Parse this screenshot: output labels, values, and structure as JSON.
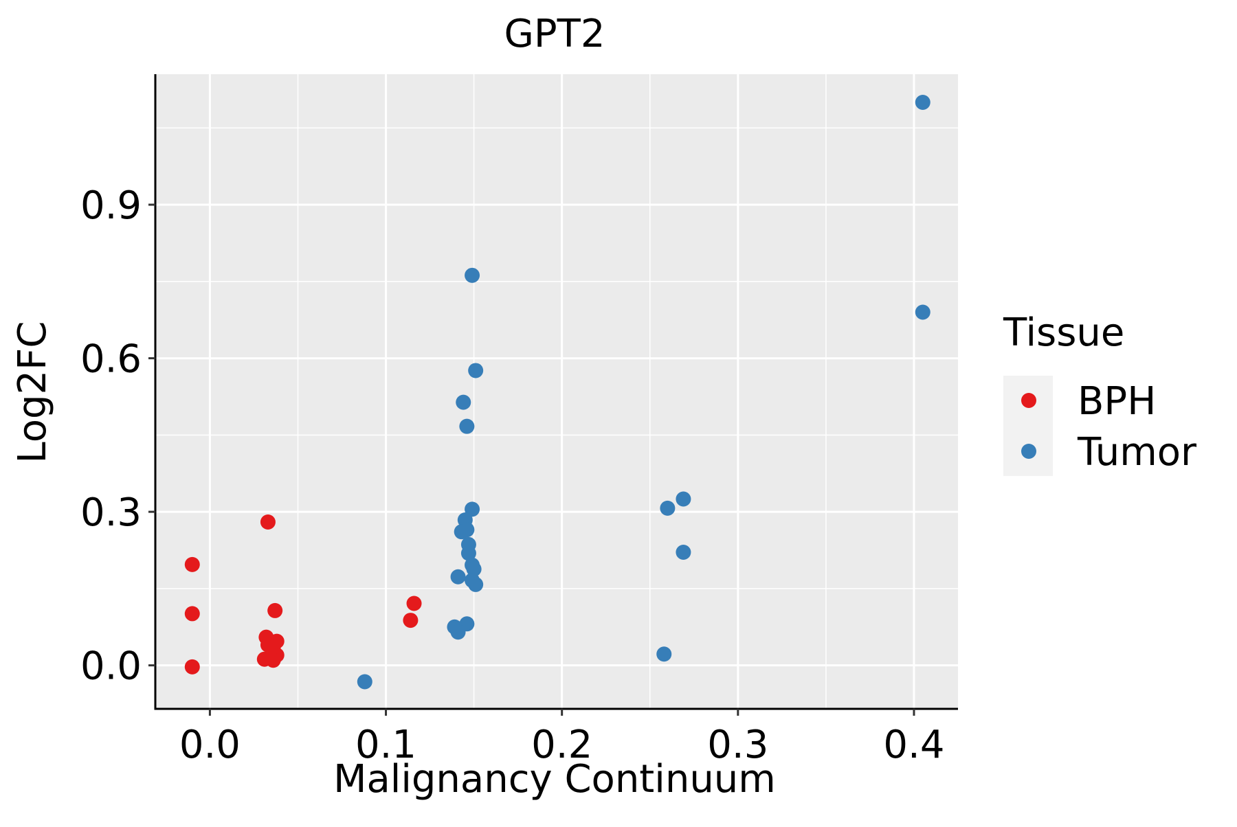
{
  "chart_data": {
    "type": "scatter",
    "title": "GPT2",
    "xlabel": "Malignancy Continuum",
    "ylabel": "Log2FC",
    "xlim": [
      -0.031,
      0.425
    ],
    "ylim": [
      -0.085,
      1.155
    ],
    "xticks": [
      0.0,
      0.1,
      0.2,
      0.3,
      0.4
    ],
    "xtick_labels": [
      "0.0",
      "0.1",
      "0.2",
      "0.3",
      "0.4"
    ],
    "yticks": [
      0.0,
      0.3,
      0.6,
      0.9
    ],
    "ytick_labels": [
      "0.0",
      "0.3",
      "0.6",
      "0.9"
    ],
    "x_minor_grid": [
      0.05,
      0.15,
      0.25,
      0.35
    ],
    "y_minor_grid": [
      0.15,
      0.45,
      0.75,
      1.05
    ],
    "grid": true,
    "background": "#EBEBEB",
    "legend": {
      "title": "Tissue",
      "placement": "right",
      "entries": [
        "BPH",
        "Tumor"
      ]
    },
    "series": [
      {
        "name": "BPH",
        "color": "#E41A1C",
        "points": [
          {
            "x": -0.01,
            "y": 0.197
          },
          {
            "x": -0.01,
            "y": 0.101
          },
          {
            "x": -0.01,
            "y": -0.003
          },
          {
            "x": 0.033,
            "y": 0.28
          },
          {
            "x": 0.037,
            "y": 0.107
          },
          {
            "x": 0.032,
            "y": 0.055
          },
          {
            "x": 0.038,
            "y": 0.047
          },
          {
            "x": 0.033,
            "y": 0.04
          },
          {
            "x": 0.036,
            "y": 0.035
          },
          {
            "x": 0.038,
            "y": 0.02
          },
          {
            "x": 0.031,
            "y": 0.012
          },
          {
            "x": 0.036,
            "y": 0.01
          },
          {
            "x": 0.116,
            "y": 0.121
          },
          {
            "x": 0.114,
            "y": 0.088
          }
        ]
      },
      {
        "name": "Tumor",
        "color": "#377EB8",
        "points": [
          {
            "x": 0.405,
            "y": 1.1
          },
          {
            "x": 0.405,
            "y": 0.69
          },
          {
            "x": 0.149,
            "y": 0.762
          },
          {
            "x": 0.151,
            "y": 0.576
          },
          {
            "x": 0.144,
            "y": 0.514
          },
          {
            "x": 0.146,
            "y": 0.467
          },
          {
            "x": 0.149,
            "y": 0.305
          },
          {
            "x": 0.145,
            "y": 0.284
          },
          {
            "x": 0.146,
            "y": 0.265
          },
          {
            "x": 0.143,
            "y": 0.261
          },
          {
            "x": 0.147,
            "y": 0.236
          },
          {
            "x": 0.147,
            "y": 0.219
          },
          {
            "x": 0.149,
            "y": 0.196
          },
          {
            "x": 0.15,
            "y": 0.188
          },
          {
            "x": 0.141,
            "y": 0.173
          },
          {
            "x": 0.149,
            "y": 0.166
          },
          {
            "x": 0.151,
            "y": 0.158
          },
          {
            "x": 0.146,
            "y": 0.081
          },
          {
            "x": 0.139,
            "y": 0.075
          },
          {
            "x": 0.141,
            "y": 0.065
          },
          {
            "x": 0.088,
            "y": -0.032
          },
          {
            "x": 0.26,
            "y": 0.307
          },
          {
            "x": 0.269,
            "y": 0.325
          },
          {
            "x": 0.269,
            "y": 0.221
          },
          {
            "x": 0.258,
            "y": 0.022
          }
        ]
      }
    ]
  }
}
